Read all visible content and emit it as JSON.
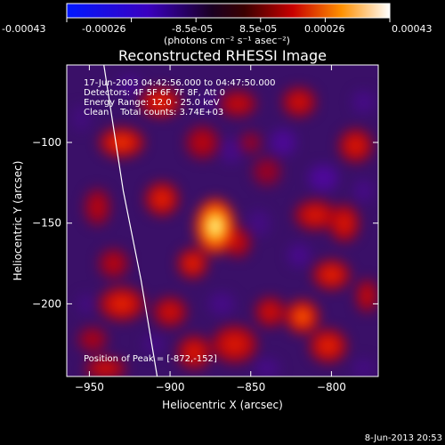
{
  "chart_data": {
    "type": "heatmap",
    "title": "Reconstructed RHESSI Image",
    "xlabel": "Heliocentric X (arcsec)",
    "ylabel": "Heliocentric Y (arcsec)",
    "xlim": [
      -964,
      -771
    ],
    "ylim": [
      -245,
      -52
    ],
    "x_ticks": [
      -950,
      -900,
      -850,
      -800
    ],
    "x_tick_labels": [
      "−950",
      "−900",
      "−850",
      "−800"
    ],
    "y_ticks": [
      -100,
      -150,
      -200
    ],
    "y_tick_labels": [
      "−100",
      "−150",
      "−200"
    ],
    "annotations": [
      "17-Jun-2003 04:42:56.000 to 04:47:50.000",
      "Detectors: 4F 5F 6F 7F 8F, Att 0",
      "Energy Range: 12.0 - 25.0 keV",
      "Clean    Total counts: 3.74E+03"
    ],
    "peak_label": "Position of Peak = [-872,-152]",
    "peak": [
      -872,
      -152
    ],
    "colorbar": {
      "range": [
        -0.00043,
        0.00043
      ],
      "tick_labels": [
        "-0.00043",
        "-0.00026",
        "-8.5e-05",
        "8.5e-05",
        "0.00026",
        "0.00043"
      ],
      "unit_label": "(photons cm⁻² s⁻¹ asec⁻²)"
    },
    "limb_curve": [
      [
        -941,
        -52
      ],
      [
        -929,
        -130
      ],
      [
        -918,
        -185
      ],
      [
        -908,
        -245
      ]
    ],
    "blobs": [
      [
        -872,
        -152,
        1.0,
        11,
        15
      ],
      [
        -886,
        -175,
        0.55,
        8,
        8
      ],
      [
        -905,
        -135,
        0.55,
        9,
        9
      ],
      [
        -858,
        -162,
        0.4,
        7,
        8
      ],
      [
        -930,
        -100,
        0.6,
        12,
        8
      ],
      [
        -945,
        -140,
        0.35,
        7,
        10
      ],
      [
        -935,
        -175,
        0.35,
        8,
        8
      ],
      [
        -930,
        -200,
        0.55,
        12,
        9
      ],
      [
        -900,
        -205,
        0.45,
        9,
        8
      ],
      [
        -906,
        -75,
        0.55,
        11,
        8
      ],
      [
        -880,
        -100,
        0.35,
        9,
        9
      ],
      [
        -858,
        -76,
        0.4,
        10,
        7
      ],
      [
        -820,
        -75,
        0.45,
        9,
        8
      ],
      [
        -785,
        -102,
        0.5,
        9,
        9
      ],
      [
        -810,
        -145,
        0.5,
        11,
        8
      ],
      [
        -792,
        -150,
        0.5,
        8,
        10
      ],
      [
        -800,
        -182,
        0.55,
        10,
        8
      ],
      [
        -778,
        -195,
        0.4,
        6,
        9
      ],
      [
        -818,
        -208,
        0.7,
        9,
        9
      ],
      [
        -802,
        -226,
        0.55,
        10,
        9
      ],
      [
        -860,
        -225,
        0.5,
        12,
        10
      ],
      [
        -838,
        -205,
        0.45,
        8,
        8
      ],
      [
        -885,
        -230,
        0.5,
        9,
        9
      ],
      [
        -940,
        -240,
        0.45,
        11,
        6
      ],
      [
        -948,
        -222,
        0.3,
        8,
        7
      ],
      [
        -840,
        -118,
        0.25,
        8,
        8
      ],
      [
        -850,
        -100,
        0.25,
        6,
        6
      ],
      [
        -925,
        -65,
        -0.35,
        7,
        6
      ],
      [
        -830,
        -100,
        -0.45,
        8,
        8
      ],
      [
        -805,
        -122,
        -0.5,
        9,
        8
      ],
      [
        -862,
        -105,
        -0.3,
        7,
        8
      ],
      [
        -875,
        -75,
        -0.25,
        6,
        6
      ],
      [
        -780,
        -75,
        -0.3,
        7,
        7
      ],
      [
        -845,
        -150,
        -0.25,
        7,
        8
      ],
      [
        -820,
        -170,
        -0.35,
        7,
        7
      ],
      [
        -780,
        -130,
        -0.3,
        6,
        7
      ],
      [
        -868,
        -200,
        -0.3,
        8,
        7
      ],
      [
        -840,
        -240,
        -0.3,
        8,
        6
      ],
      [
        -955,
        -85,
        -0.2,
        6,
        8
      ],
      [
        -952,
        -200,
        -0.25,
        5,
        6
      ],
      [
        -910,
        -225,
        -0.25,
        7,
        6
      ],
      [
        -780,
        -240,
        -0.25,
        7,
        6
      ]
    ]
  },
  "footer": {
    "timestamp": "8-Jun-2013 20:53"
  }
}
